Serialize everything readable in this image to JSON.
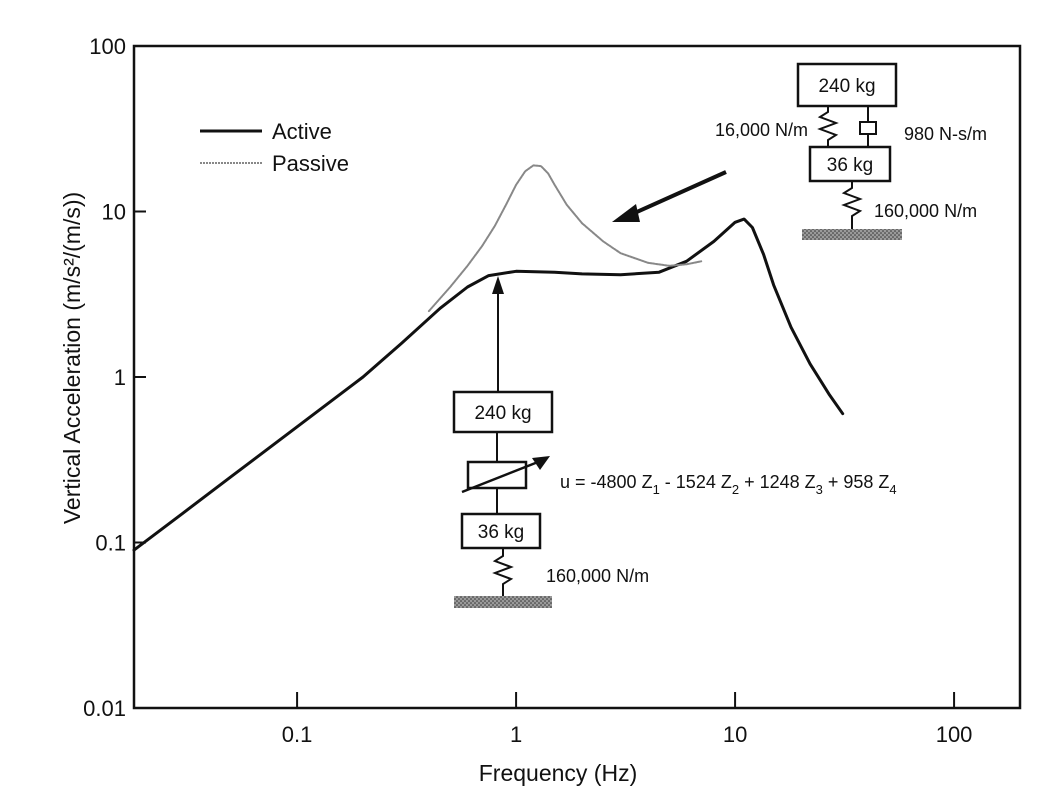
{
  "chart_data": {
    "type": "line",
    "xlabel": "Frequency (Hz)",
    "ylabel": "Vertical Acceleration  (m/s²/(m/s))",
    "xscale": "log",
    "yscale": "log",
    "xlim": [
      0.018,
      200
    ],
    "ylim": [
      0.01,
      100
    ],
    "x_tick_labels": [
      "0.1",
      "1",
      "10",
      "100"
    ],
    "x_tick_values": [
      0.1,
      1,
      10,
      100
    ],
    "y_tick_labels": [
      "0.01",
      "0.1",
      "1",
      "10",
      "100"
    ],
    "y_tick_values": [
      0.01,
      0.1,
      1,
      10,
      100
    ],
    "grid": false,
    "legend_position": "top-left",
    "series": [
      {
        "name": "Active",
        "color": "#111111",
        "x": [
          0.018,
          0.03,
          0.05,
          0.1,
          0.2,
          0.3,
          0.45,
          0.6,
          0.75,
          1.0,
          1.5,
          2.0,
          3.0,
          4.5,
          6.0,
          8.0,
          10.0,
          11.0,
          12.0,
          13.5,
          15.0,
          18.0,
          22.0,
          27.0,
          31.0
        ],
        "y": [
          0.09,
          0.15,
          0.25,
          0.5,
          1.0,
          1.6,
          2.6,
          3.5,
          4.1,
          4.35,
          4.3,
          4.2,
          4.15,
          4.3,
          5.0,
          6.6,
          8.6,
          9.0,
          8.0,
          5.5,
          3.6,
          2.0,
          1.2,
          0.78,
          0.6
        ]
      },
      {
        "name": "Passive",
        "color": "#888888",
        "x": [
          0.4,
          0.5,
          0.6,
          0.7,
          0.8,
          0.9,
          1.0,
          1.1,
          1.2,
          1.3,
          1.4,
          1.5,
          1.7,
          2.0,
          2.5,
          3.0,
          4.0,
          5.0,
          6.0,
          7.0
        ],
        "y": [
          2.5,
          3.5,
          4.7,
          6.2,
          8.2,
          11.0,
          14.5,
          17.5,
          19.0,
          18.8,
          17.0,
          14.5,
          11.0,
          8.5,
          6.6,
          5.6,
          4.9,
          4.7,
          4.8,
          5.0
        ]
      }
    ],
    "annotations": {
      "passive_system": {
        "sprung_mass": "240 kg",
        "unsprung_mass": "36 kg",
        "suspension_spring": "16,000 N/m",
        "damper": "980 N-s/m",
        "tire_spring": "160,000 N/m"
      },
      "active_system": {
        "sprung_mass": "240 kg",
        "unsprung_mass": "36 kg",
        "tire_spring": "160,000 N/m",
        "control_law": {
          "prefix": "u = -4800 Z",
          "s1": "1",
          "t1": " - 1524 Z",
          "s2": "2",
          "t2": " + 1248 Z",
          "s3": "3",
          "t3": " + 958 Z",
          "s4": "4"
        }
      }
    }
  }
}
